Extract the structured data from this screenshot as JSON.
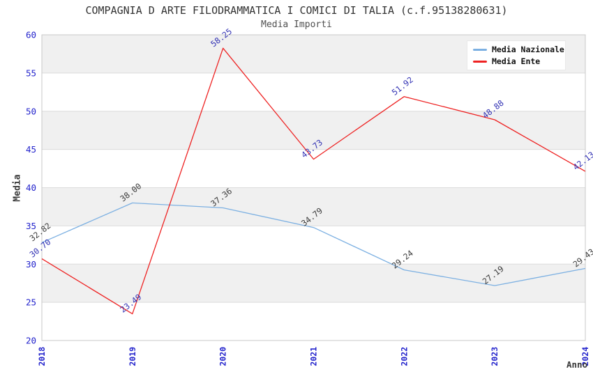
{
  "chart_data": {
    "type": "line",
    "title": "COMPAGNIA D ARTE FILODRAMMATICA I COMICI DI TALIA (c.f.95138280631)",
    "subtitle": "Media Importi",
    "xlabel": "Anno",
    "ylabel": "Media",
    "categories": [
      "2018",
      "2019",
      "2020",
      "2021",
      "2022",
      "2023",
      "2024"
    ],
    "series": [
      {
        "name": "Media Nazionale",
        "color": "#7cb0e2",
        "label_color": "#3c3c3c",
        "values": [
          32.82,
          38.0,
          37.36,
          34.79,
          29.24,
          27.19,
          29.43
        ]
      },
      {
        "name": "Media Ente",
        "color": "#ee2222",
        "label_color": "#3232b4",
        "values": [
          30.7,
          23.49,
          58.25,
          43.73,
          51.92,
          48.88,
          42.13
        ]
      }
    ],
    "ylim": [
      20,
      60
    ],
    "yticks": [
      20,
      25,
      30,
      35,
      40,
      45,
      50,
      55,
      60
    ],
    "grid": true,
    "data_labels": true,
    "legend_position": "top-right",
    "tick_color": "#2222cc",
    "band_color": "#f0f0f0",
    "grid_color": "#dcdcdc",
    "border_color": "#c8c8c8"
  }
}
